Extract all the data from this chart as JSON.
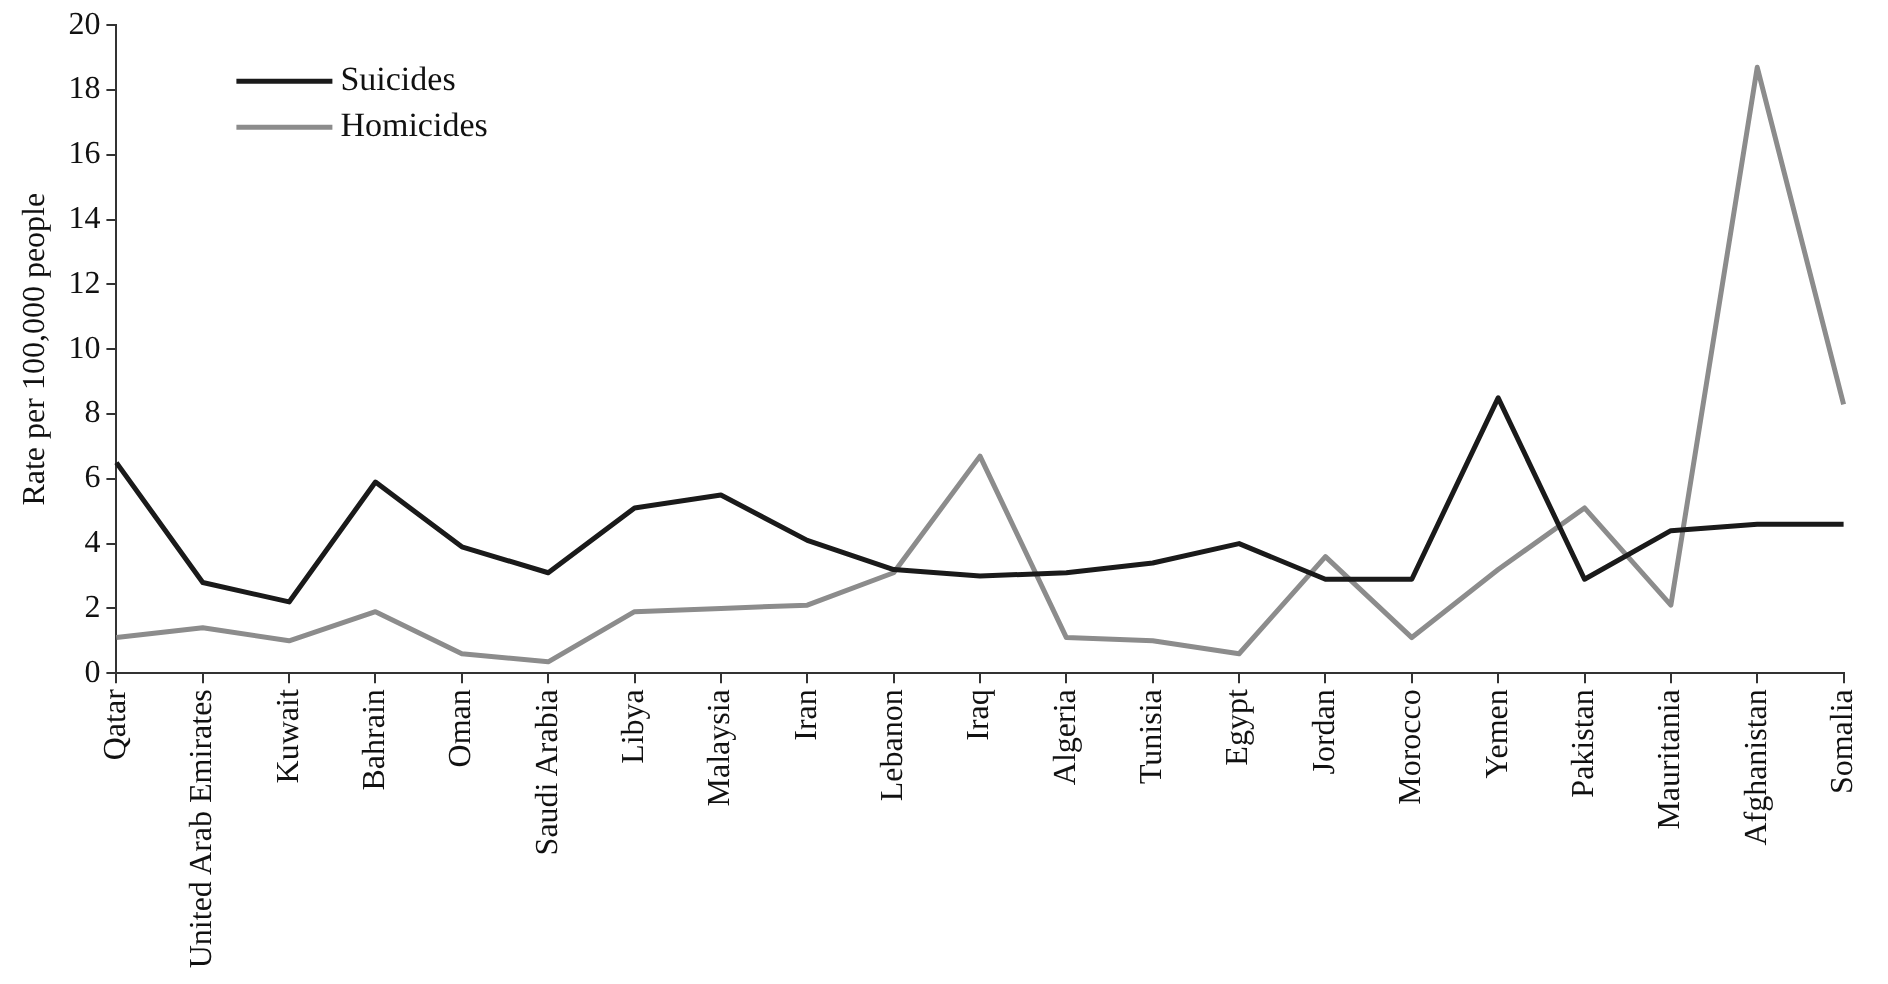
{
  "chart_data": {
    "type": "line",
    "ylabel": "Rate per 100,000 people",
    "categories": [
      "Qatar",
      "United Arab Emirates",
      "Kuwait",
      "Bahrain",
      "Oman",
      "Saudi Arabia",
      "Libya",
      "Malaysia",
      "Iran",
      "Lebanon",
      "Iraq",
      "Algeria",
      "Tunisia",
      "Egypt",
      "Jordan",
      "Morocco",
      "Yemen",
      "Pakistan",
      "Mauritania",
      "Afghanistan",
      "Somalia"
    ],
    "series": [
      {
        "name": "Suicides",
        "color": "#1a1a1a",
        "values": [
          6.5,
          2.8,
          2.2,
          5.9,
          3.9,
          3.1,
          5.1,
          5.5,
          4.1,
          3.2,
          3.0,
          3.1,
          3.4,
          4.0,
          2.9,
          2.9,
          8.5,
          2.9,
          4.4,
          4.6,
          4.6
        ]
      },
      {
        "name": "Homicides",
        "color": "#8c8c8c",
        "values": [
          1.1,
          1.4,
          1.0,
          1.9,
          0.6,
          0.35,
          1.9,
          2.0,
          2.1,
          3.1,
          6.7,
          1.1,
          1.0,
          0.6,
          3.6,
          1.1,
          3.2,
          5.1,
          2.1,
          18.7,
          8.3
        ]
      }
    ],
    "ylim": [
      0,
      20
    ],
    "yticks": [
      0,
      2,
      4,
      6,
      8,
      10,
      12,
      14,
      16,
      18,
      20
    ],
    "grid": false,
    "legend": "top left",
    "marker": "none",
    "line_style": "solid"
  }
}
